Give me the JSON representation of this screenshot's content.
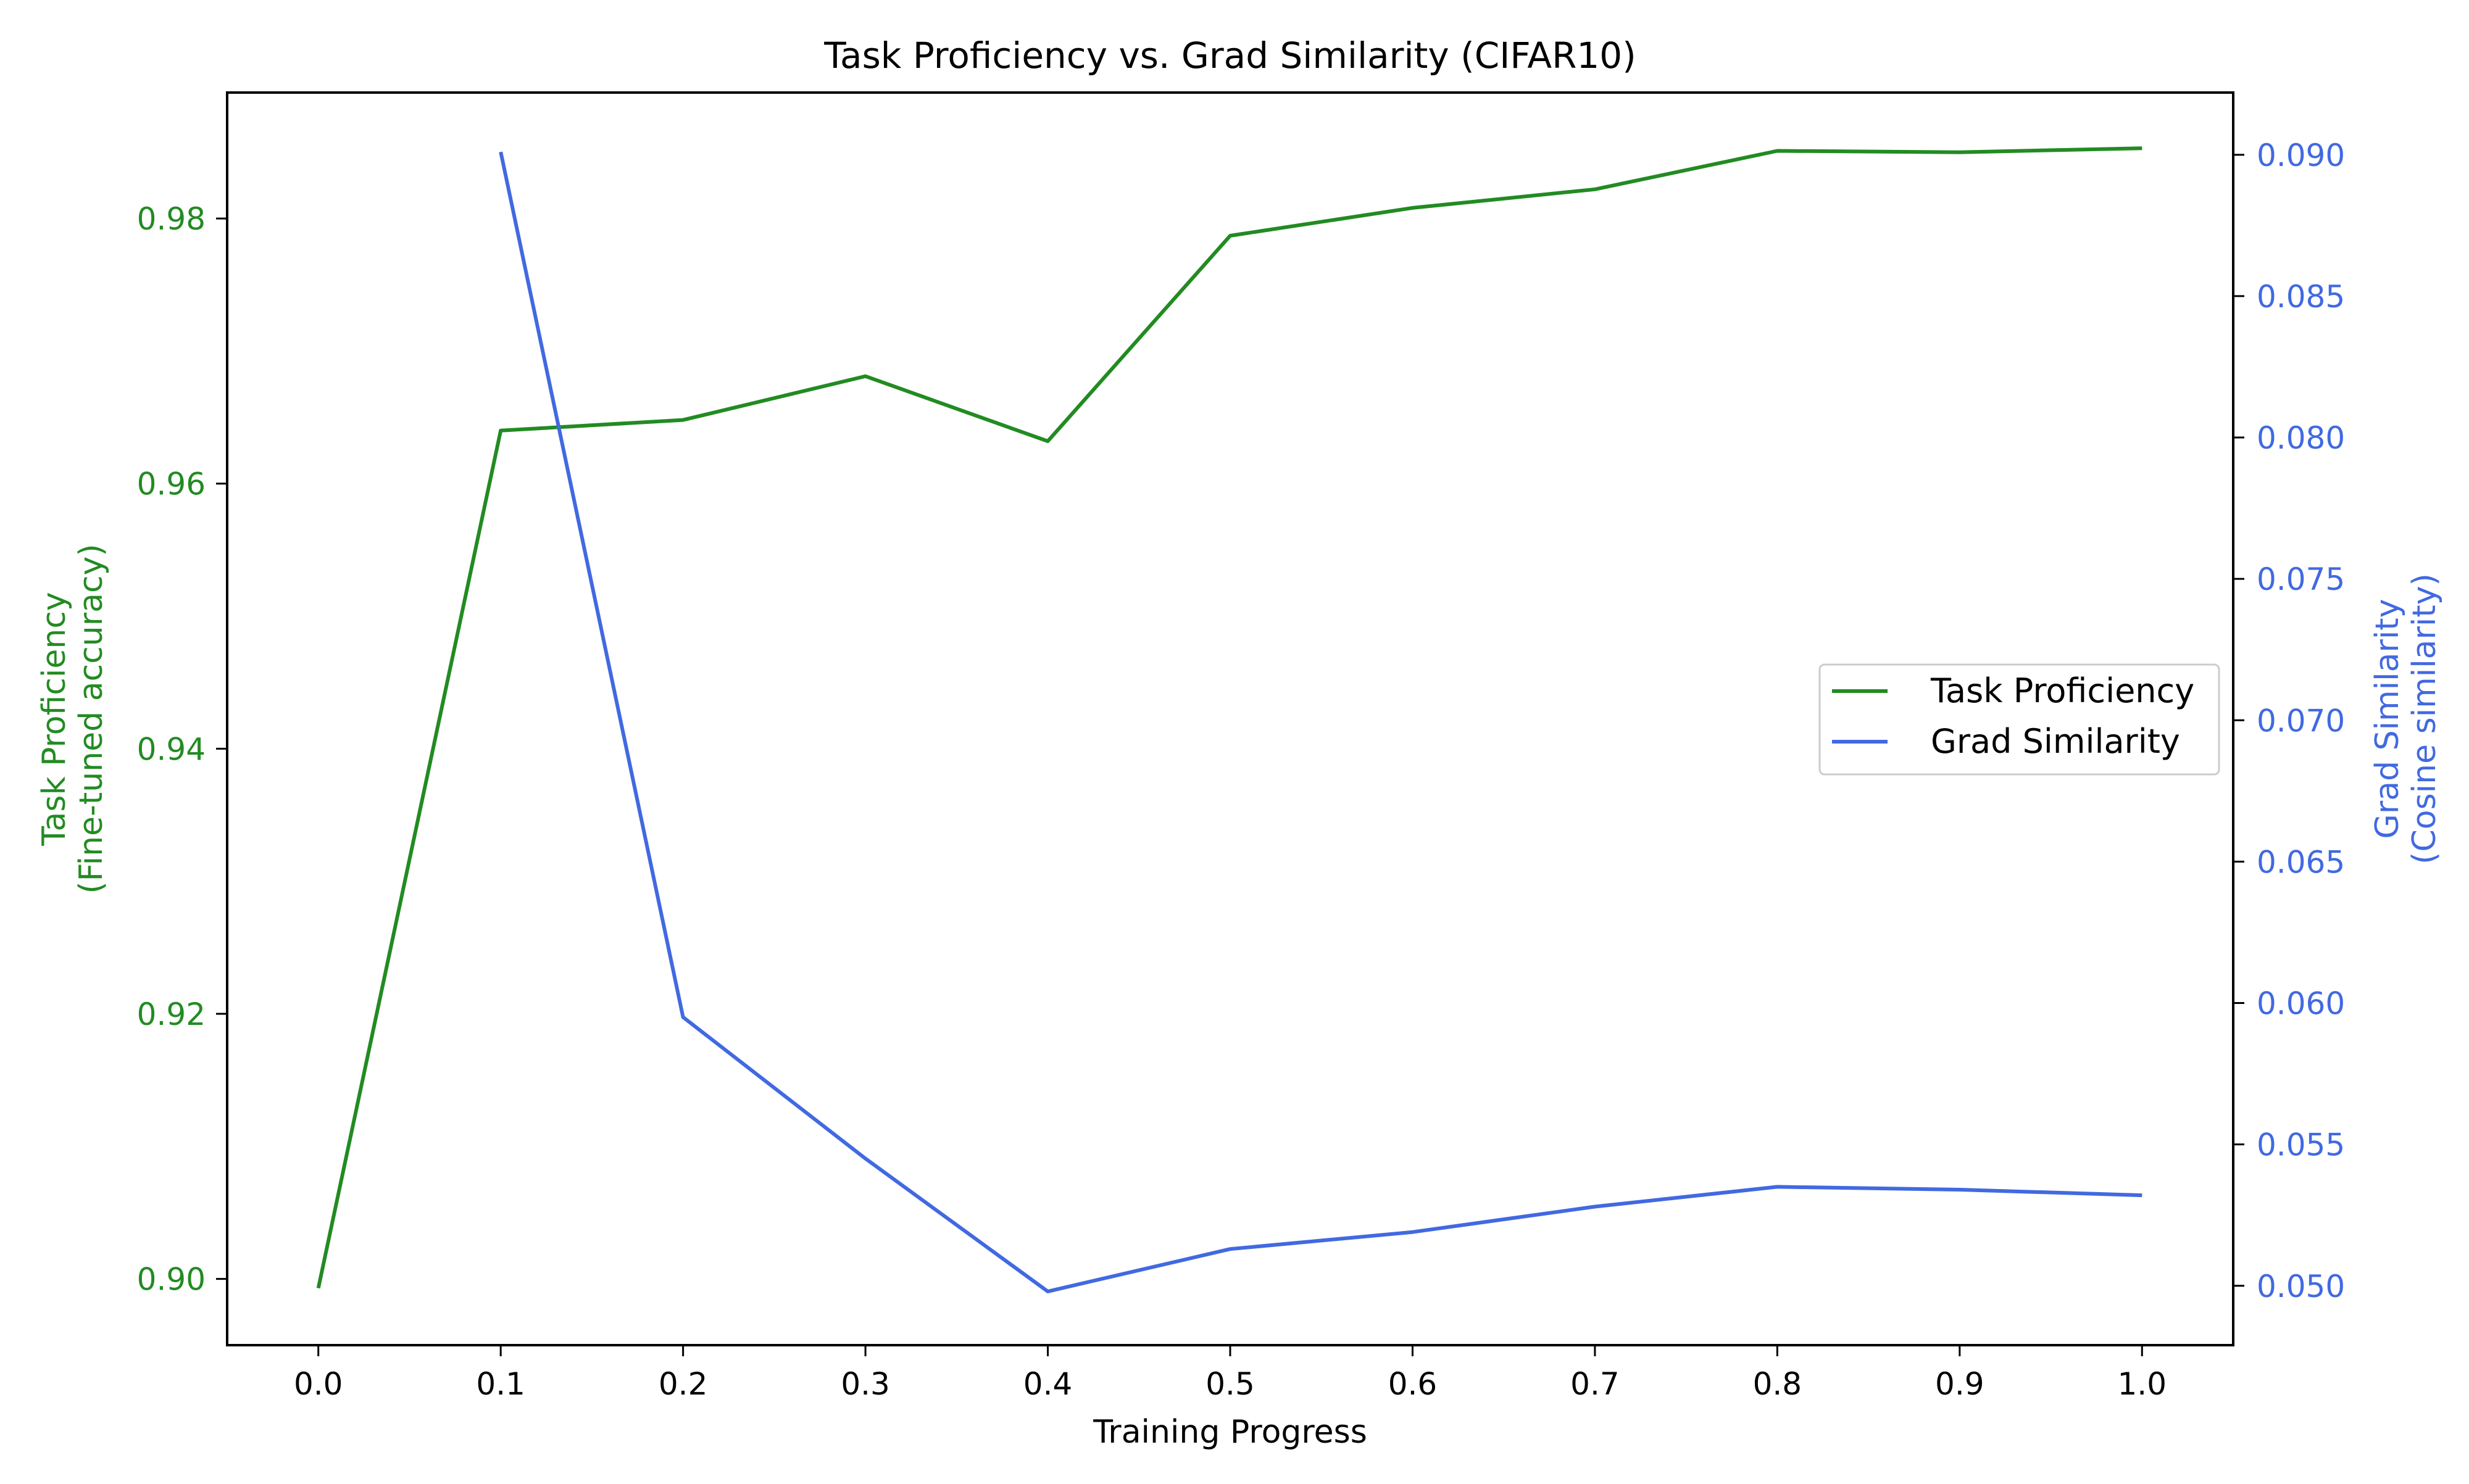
{
  "chart_data": {
    "type": "line",
    "title": "Task Proficiency vs. Grad Similarity (CIFAR10)",
    "xlabel": "Training Progress",
    "ylabel_left": [
      "Task Proficiency",
      "(Fine-tuned accuracy)"
    ],
    "ylabel_right": [
      "Grad Similarity",
      "(Cosine similarity)"
    ],
    "x_ticks": [
      "0.0",
      "0.1",
      "0.2",
      "0.3",
      "0.4",
      "0.5",
      "0.6",
      "0.7",
      "0.8",
      "0.9",
      "1.0"
    ],
    "y_left_ticks": [
      "0.90",
      "0.92",
      "0.94",
      "0.96",
      "0.98"
    ],
    "y_right_ticks": [
      "0.050",
      "0.055",
      "0.060",
      "0.065",
      "0.070",
      "0.075",
      "0.080",
      "0.085",
      "0.090"
    ],
    "xlim": [
      -0.05,
      1.05
    ],
    "ylim_left": [
      0.895,
      0.9895
    ],
    "ylim_right": [
      0.0479,
      0.0922
    ],
    "legend_position": "center-right",
    "grid": false,
    "series": [
      {
        "name": "Task Proficiency",
        "axis": "left",
        "color": "#228B22",
        "x": [
          0.0,
          0.1,
          0.2,
          0.3,
          0.4,
          0.5,
          0.6,
          0.7,
          0.8,
          0.9,
          1.0
        ],
        "y": [
          0.8993,
          0.964,
          0.9648,
          0.9681,
          0.9632,
          0.9787,
          0.9808,
          0.9822,
          0.9851,
          0.985,
          0.9853
        ]
      },
      {
        "name": "Grad Similarity",
        "axis": "right",
        "color": "#4169E1",
        "x": [
          0.1,
          0.2,
          0.3,
          0.4,
          0.5,
          0.6,
          0.7,
          0.8,
          0.9,
          1.0
        ],
        "y": [
          0.0901,
          0.0595,
          0.0545,
          0.0498,
          0.0513,
          0.0519,
          0.0528,
          0.0535,
          0.0534,
          0.0532
        ]
      }
    ]
  }
}
